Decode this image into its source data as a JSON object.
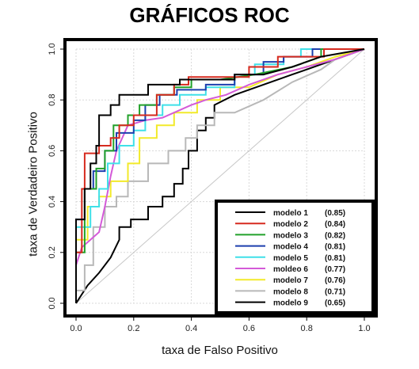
{
  "chart_data": {
    "type": "line",
    "title": "GRÁFICOS ROC",
    "xlabel": "taxa de Falso Positivo",
    "ylabel": "taxa de Verdadeiro Positivo",
    "xlim": [
      0,
      1
    ],
    "ylim": [
      0,
      1
    ],
    "x_ticks": [
      "0.0",
      "0.2",
      "0.4",
      "0.6",
      "0.8",
      "1.0"
    ],
    "y_ticks": [
      "0.0",
      "0.2",
      "0.4",
      "0.6",
      "0.8",
      "1.0"
    ],
    "grid": true,
    "legend_position": "bottom-right",
    "diagonal_reference": true,
    "series": [
      {
        "name": "modelo 1",
        "auc": "(0.85)",
        "color": "#000000",
        "points": [
          [
            0,
            0
          ],
          [
            0,
            0.33
          ],
          [
            0.03,
            0.33
          ],
          [
            0.03,
            0.45
          ],
          [
            0.05,
            0.45
          ],
          [
            0.05,
            0.55
          ],
          [
            0.07,
            0.55
          ],
          [
            0.07,
            0.62
          ],
          [
            0.08,
            0.62
          ],
          [
            0.08,
            0.74
          ],
          [
            0.12,
            0.74
          ],
          [
            0.12,
            0.78
          ],
          [
            0.15,
            0.78
          ],
          [
            0.15,
            0.82
          ],
          [
            0.25,
            0.82
          ],
          [
            0.25,
            0.86
          ],
          [
            0.36,
            0.86
          ],
          [
            0.36,
            0.88
          ],
          [
            0.45,
            0.88
          ],
          [
            0.55,
            0.88
          ],
          [
            0.55,
            0.9
          ],
          [
            0.65,
            0.9
          ],
          [
            0.75,
            0.93
          ],
          [
            0.85,
            0.97
          ],
          [
            1,
            1
          ]
        ]
      },
      {
        "name": "modelo 2",
        "auc": "(0.84)",
        "color": "#d62a1e",
        "points": [
          [
            0,
            0
          ],
          [
            0,
            0.2
          ],
          [
            0.02,
            0.2
          ],
          [
            0.02,
            0.45
          ],
          [
            0.03,
            0.45
          ],
          [
            0.03,
            0.59
          ],
          [
            0.08,
            0.59
          ],
          [
            0.08,
            0.62
          ],
          [
            0.12,
            0.62
          ],
          [
            0.12,
            0.65
          ],
          [
            0.15,
            0.65
          ],
          [
            0.15,
            0.7
          ],
          [
            0.2,
            0.7
          ],
          [
            0.2,
            0.74
          ],
          [
            0.28,
            0.74
          ],
          [
            0.28,
            0.82
          ],
          [
            0.34,
            0.82
          ],
          [
            0.34,
            0.86
          ],
          [
            0.39,
            0.86
          ],
          [
            0.39,
            0.89
          ],
          [
            0.5,
            0.89
          ],
          [
            0.6,
            0.89
          ],
          [
            0.6,
            0.93
          ],
          [
            0.7,
            0.93
          ],
          [
            0.7,
            0.97
          ],
          [
            0.86,
            0.97
          ],
          [
            0.86,
            1
          ],
          [
            1,
            1
          ]
        ]
      },
      {
        "name": "modelo 3",
        "auc": "(0.82)",
        "color": "#22a12a",
        "points": [
          [
            0,
            0
          ],
          [
            0,
            0.2
          ],
          [
            0.03,
            0.2
          ],
          [
            0.03,
            0.45
          ],
          [
            0.07,
            0.45
          ],
          [
            0.07,
            0.53
          ],
          [
            0.1,
            0.53
          ],
          [
            0.1,
            0.6
          ],
          [
            0.13,
            0.6
          ],
          [
            0.13,
            0.7
          ],
          [
            0.18,
            0.7
          ],
          [
            0.18,
            0.74
          ],
          [
            0.22,
            0.74
          ],
          [
            0.22,
            0.78
          ],
          [
            0.28,
            0.78
          ],
          [
            0.28,
            0.82
          ],
          [
            0.34,
            0.82
          ],
          [
            0.34,
            0.85
          ],
          [
            0.4,
            0.85
          ],
          [
            0.4,
            0.88
          ],
          [
            0.5,
            0.88
          ],
          [
            0.62,
            0.9
          ],
          [
            0.75,
            0.93
          ],
          [
            0.85,
            0.97
          ],
          [
            0.85,
            1
          ],
          [
            1,
            1
          ]
        ]
      },
      {
        "name": "modelo 4",
        "auc": "(0.81)",
        "color": "#1c3fae",
        "points": [
          [
            0,
            0
          ],
          [
            0,
            0.33
          ],
          [
            0.03,
            0.33
          ],
          [
            0.03,
            0.45
          ],
          [
            0.06,
            0.45
          ],
          [
            0.06,
            0.52
          ],
          [
            0.1,
            0.52
          ],
          [
            0.1,
            0.6
          ],
          [
            0.14,
            0.6
          ],
          [
            0.14,
            0.67
          ],
          [
            0.2,
            0.67
          ],
          [
            0.2,
            0.72
          ],
          [
            0.24,
            0.72
          ],
          [
            0.24,
            0.78
          ],
          [
            0.29,
            0.78
          ],
          [
            0.29,
            0.82
          ],
          [
            0.35,
            0.82
          ],
          [
            0.35,
            0.84
          ],
          [
            0.45,
            0.84
          ],
          [
            0.45,
            0.86
          ],
          [
            0.55,
            0.86
          ],
          [
            0.55,
            0.9
          ],
          [
            0.65,
            0.9
          ],
          [
            0.65,
            0.95
          ],
          [
            0.72,
            0.95
          ],
          [
            0.72,
            0.97
          ],
          [
            0.82,
            0.97
          ],
          [
            0.82,
            1
          ],
          [
            1,
            1
          ]
        ]
      },
      {
        "name": "modelo 5",
        "auc": "(0.81)",
        "color": "#3fe0e8",
        "points": [
          [
            0,
            0
          ],
          [
            0,
            0.3
          ],
          [
            0.05,
            0.3
          ],
          [
            0.05,
            0.38
          ],
          [
            0.08,
            0.38
          ],
          [
            0.08,
            0.45
          ],
          [
            0.11,
            0.45
          ],
          [
            0.11,
            0.55
          ],
          [
            0.15,
            0.55
          ],
          [
            0.15,
            0.62
          ],
          [
            0.2,
            0.62
          ],
          [
            0.2,
            0.68
          ],
          [
            0.24,
            0.68
          ],
          [
            0.24,
            0.74
          ],
          [
            0.3,
            0.74
          ],
          [
            0.3,
            0.78
          ],
          [
            0.36,
            0.78
          ],
          [
            0.36,
            0.82
          ],
          [
            0.45,
            0.82
          ],
          [
            0.45,
            0.85
          ],
          [
            0.55,
            0.85
          ],
          [
            0.55,
            0.9
          ],
          [
            0.62,
            0.9
          ],
          [
            0.62,
            0.94
          ],
          [
            0.72,
            0.94
          ],
          [
            0.72,
            0.97
          ],
          [
            0.78,
            0.97
          ],
          [
            0.78,
            1
          ],
          [
            1,
            1
          ]
        ]
      },
      {
        "name": "moldeo 6",
        "auc": "(0.77)",
        "color": "#d45ad8",
        "points": [
          [
            0,
            0
          ],
          [
            0,
            0.15
          ],
          [
            0.02,
            0.22
          ],
          [
            0.05,
            0.25
          ],
          [
            0.08,
            0.28
          ],
          [
            0.1,
            0.38
          ],
          [
            0.12,
            0.5
          ],
          [
            0.14,
            0.6
          ],
          [
            0.18,
            0.7
          ],
          [
            0.24,
            0.72
          ],
          [
            0.3,
            0.73
          ],
          [
            0.4,
            0.78
          ],
          [
            0.45,
            0.8
          ],
          [
            0.52,
            0.82
          ],
          [
            0.6,
            0.86
          ],
          [
            0.7,
            0.9
          ],
          [
            0.8,
            0.93
          ],
          [
            0.9,
            0.96
          ],
          [
            1,
            1
          ]
        ]
      },
      {
        "name": "modelo 7",
        "auc": "(0.76)",
        "color": "#f2ea2a",
        "points": [
          [
            0,
            0
          ],
          [
            0,
            0.25
          ],
          [
            0.04,
            0.25
          ],
          [
            0.04,
            0.38
          ],
          [
            0.08,
            0.38
          ],
          [
            0.08,
            0.42
          ],
          [
            0.12,
            0.42
          ],
          [
            0.12,
            0.48
          ],
          [
            0.18,
            0.48
          ],
          [
            0.18,
            0.55
          ],
          [
            0.22,
            0.55
          ],
          [
            0.22,
            0.65
          ],
          [
            0.28,
            0.65
          ],
          [
            0.28,
            0.7
          ],
          [
            0.34,
            0.7
          ],
          [
            0.34,
            0.75
          ],
          [
            0.42,
            0.75
          ],
          [
            0.42,
            0.8
          ],
          [
            0.5,
            0.8
          ],
          [
            0.5,
            0.85
          ],
          [
            0.6,
            0.85
          ],
          [
            0.7,
            0.9
          ],
          [
            0.8,
            0.93
          ],
          [
            0.9,
            0.97
          ],
          [
            1,
            1
          ]
        ]
      },
      {
        "name": "modelo 8",
        "auc": "(0.71)",
        "color": "#b8b8b8",
        "points": [
          [
            0,
            0
          ],
          [
            0,
            0.05
          ],
          [
            0.03,
            0.05
          ],
          [
            0.03,
            0.15
          ],
          [
            0.06,
            0.15
          ],
          [
            0.06,
            0.3
          ],
          [
            0.1,
            0.3
          ],
          [
            0.1,
            0.38
          ],
          [
            0.14,
            0.38
          ],
          [
            0.14,
            0.42
          ],
          [
            0.18,
            0.42
          ],
          [
            0.18,
            0.48
          ],
          [
            0.25,
            0.48
          ],
          [
            0.25,
            0.55
          ],
          [
            0.32,
            0.55
          ],
          [
            0.32,
            0.6
          ],
          [
            0.38,
            0.6
          ],
          [
            0.38,
            0.65
          ],
          [
            0.42,
            0.65
          ],
          [
            0.42,
            0.7
          ],
          [
            0.48,
            0.7
          ],
          [
            0.48,
            0.75
          ],
          [
            0.55,
            0.75
          ],
          [
            0.65,
            0.8
          ],
          [
            0.75,
            0.87
          ],
          [
            0.85,
            0.92
          ],
          [
            0.9,
            0.96
          ],
          [
            1,
            1
          ]
        ]
      },
      {
        "name": "modelo 9",
        "auc": "(0.65)",
        "color": "#000000",
        "points": [
          [
            0,
            0
          ],
          [
            0.04,
            0.07
          ],
          [
            0.08,
            0.12
          ],
          [
            0.12,
            0.18
          ],
          [
            0.15,
            0.25
          ],
          [
            0.15,
            0.3
          ],
          [
            0.19,
            0.3
          ],
          [
            0.19,
            0.33
          ],
          [
            0.25,
            0.33
          ],
          [
            0.25,
            0.38
          ],
          [
            0.3,
            0.38
          ],
          [
            0.3,
            0.42
          ],
          [
            0.34,
            0.42
          ],
          [
            0.34,
            0.47
          ],
          [
            0.37,
            0.47
          ],
          [
            0.37,
            0.53
          ],
          [
            0.39,
            0.53
          ],
          [
            0.39,
            0.6
          ],
          [
            0.42,
            0.6
          ],
          [
            0.42,
            0.68
          ],
          [
            0.45,
            0.68
          ],
          [
            0.45,
            0.73
          ],
          [
            0.48,
            0.73
          ],
          [
            0.48,
            0.78
          ],
          [
            0.55,
            0.82
          ],
          [
            0.65,
            0.86
          ],
          [
            0.75,
            0.9
          ],
          [
            0.85,
            0.94
          ],
          [
            1,
            1
          ]
        ]
      }
    ]
  }
}
